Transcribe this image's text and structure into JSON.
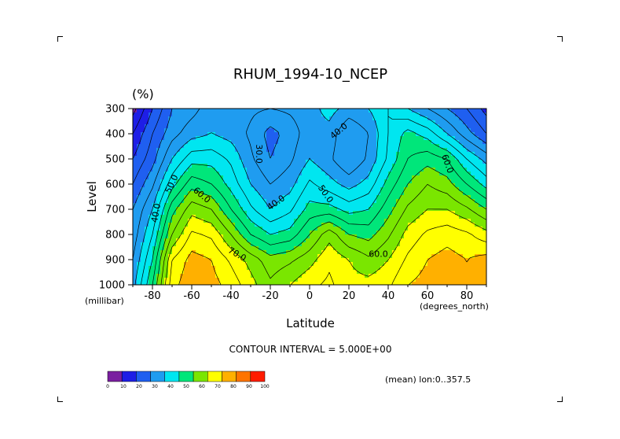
{
  "chart_data": {
    "type": "heatmap",
    "title": "RHUM_1994-10_NCEP",
    "unit": "(%)",
    "xlabel": "Latitude",
    "ylabel": "Level",
    "x_unit": "(degrees_north)",
    "y_unit": "(millibar)",
    "xlim": [
      -90,
      90
    ],
    "ylim": [
      1000,
      300
    ],
    "x_ticks": [
      "-80",
      "-60",
      "-40",
      "-20",
      "0",
      "20",
      "40",
      "60",
      "80"
    ],
    "x_tick_values": [
      -80,
      -60,
      -40,
      -20,
      0,
      20,
      40,
      60,
      80
    ],
    "y_ticks": [
      "300",
      "400",
      "500",
      "600",
      "700",
      "800",
      "900",
      "1000"
    ],
    "y_tick_values": [
      300,
      400,
      500,
      600,
      700,
      800,
      900,
      1000
    ],
    "contour_interval_text": "CONTOUR INTERVAL = 5.000E+00",
    "mean_text": "(mean) lon:0..357.5",
    "colorbar": {
      "ticks": [
        "0",
        "10",
        "20",
        "30",
        "40",
        "50",
        "60",
        "70",
        "80",
        "90",
        "100"
      ],
      "colors": [
        "#7a1fa0",
        "#1e1ee6",
        "#1f5ff0",
        "#1f9cf0",
        "#00e6f0",
        "#00e67a",
        "#7ae600",
        "#ffff00",
        "#ffb000",
        "#ff7400",
        "#ff1c00"
      ]
    },
    "contour_labels": [
      {
        "text": "30.0",
        "lat": -26,
        "lev": 480,
        "rot": 90
      },
      {
        "text": "40.0",
        "lat": -17,
        "lev": 675,
        "rot": -35
      },
      {
        "text": "40.0",
        "lat": 15,
        "lev": 390,
        "rot": -40
      },
      {
        "text": "50.0",
        "lat": -70,
        "lev": 600,
        "rot": -65
      },
      {
        "text": "60.0",
        "lat": -55,
        "lev": 645,
        "rot": 40
      },
      {
        "text": "40.0",
        "lat": -78,
        "lev": 715,
        "rot": -80
      },
      {
        "text": "50.0",
        "lat": 8,
        "lev": 640,
        "rot": 55
      },
      {
        "text": "60.0",
        "lat": 70,
        "lev": 520,
        "rot": 70
      },
      {
        "text": "70.0",
        "lat": -37,
        "lev": 880,
        "rot": 30
      },
      {
        "text": "60.0",
        "lat": 35,
        "lev": 880,
        "rot": 0
      }
    ],
    "latitudes": [
      -90,
      -80,
      -70,
      -60,
      -50,
      -40,
      -30,
      -20,
      -10,
      0,
      10,
      20,
      30,
      40,
      50,
      60,
      70,
      80,
      90
    ],
    "levels": [
      300,
      400,
      500,
      600,
      700,
      800,
      900,
      1000
    ],
    "rhum": [
      [
        8,
        20,
        30,
        33,
        38,
        38,
        36,
        35,
        36,
        38,
        42,
        38,
        40,
        45,
        40,
        35,
        30,
        25,
        18
      ],
      [
        15,
        25,
        33,
        38,
        40,
        38,
        34,
        28,
        32,
        38,
        38,
        30,
        35,
        45,
        52,
        48,
        40,
        32,
        25
      ],
      [
        20,
        28,
        40,
        48,
        48,
        44,
        36,
        30,
        34,
        40,
        36,
        30,
        36,
        46,
        55,
        58,
        55,
        45,
        38
      ],
      [
        25,
        34,
        48,
        58,
        55,
        48,
        40,
        35,
        38,
        46,
        42,
        38,
        42,
        52,
        60,
        65,
        62,
        55,
        48
      ],
      [
        30,
        40,
        58,
        68,
        65,
        55,
        46,
        40,
        44,
        52,
        52,
        48,
        50,
        58,
        66,
        70,
        70,
        66,
        60
      ],
      [
        32,
        45,
        65,
        76,
        74,
        65,
        55,
        50,
        52,
        60,
        68,
        60,
        58,
        64,
        72,
        76,
        78,
        76,
        72
      ],
      [
        35,
        50,
        75,
        82,
        80,
        74,
        68,
        62,
        64,
        68,
        74,
        70,
        66,
        70,
        76,
        80,
        82,
        80,
        82
      ],
      [
        38,
        55,
        78,
        84,
        82,
        78,
        72,
        66,
        70,
        74,
        76,
        72,
        72,
        74,
        80,
        82,
        82,
        80,
        80
      ]
    ]
  }
}
